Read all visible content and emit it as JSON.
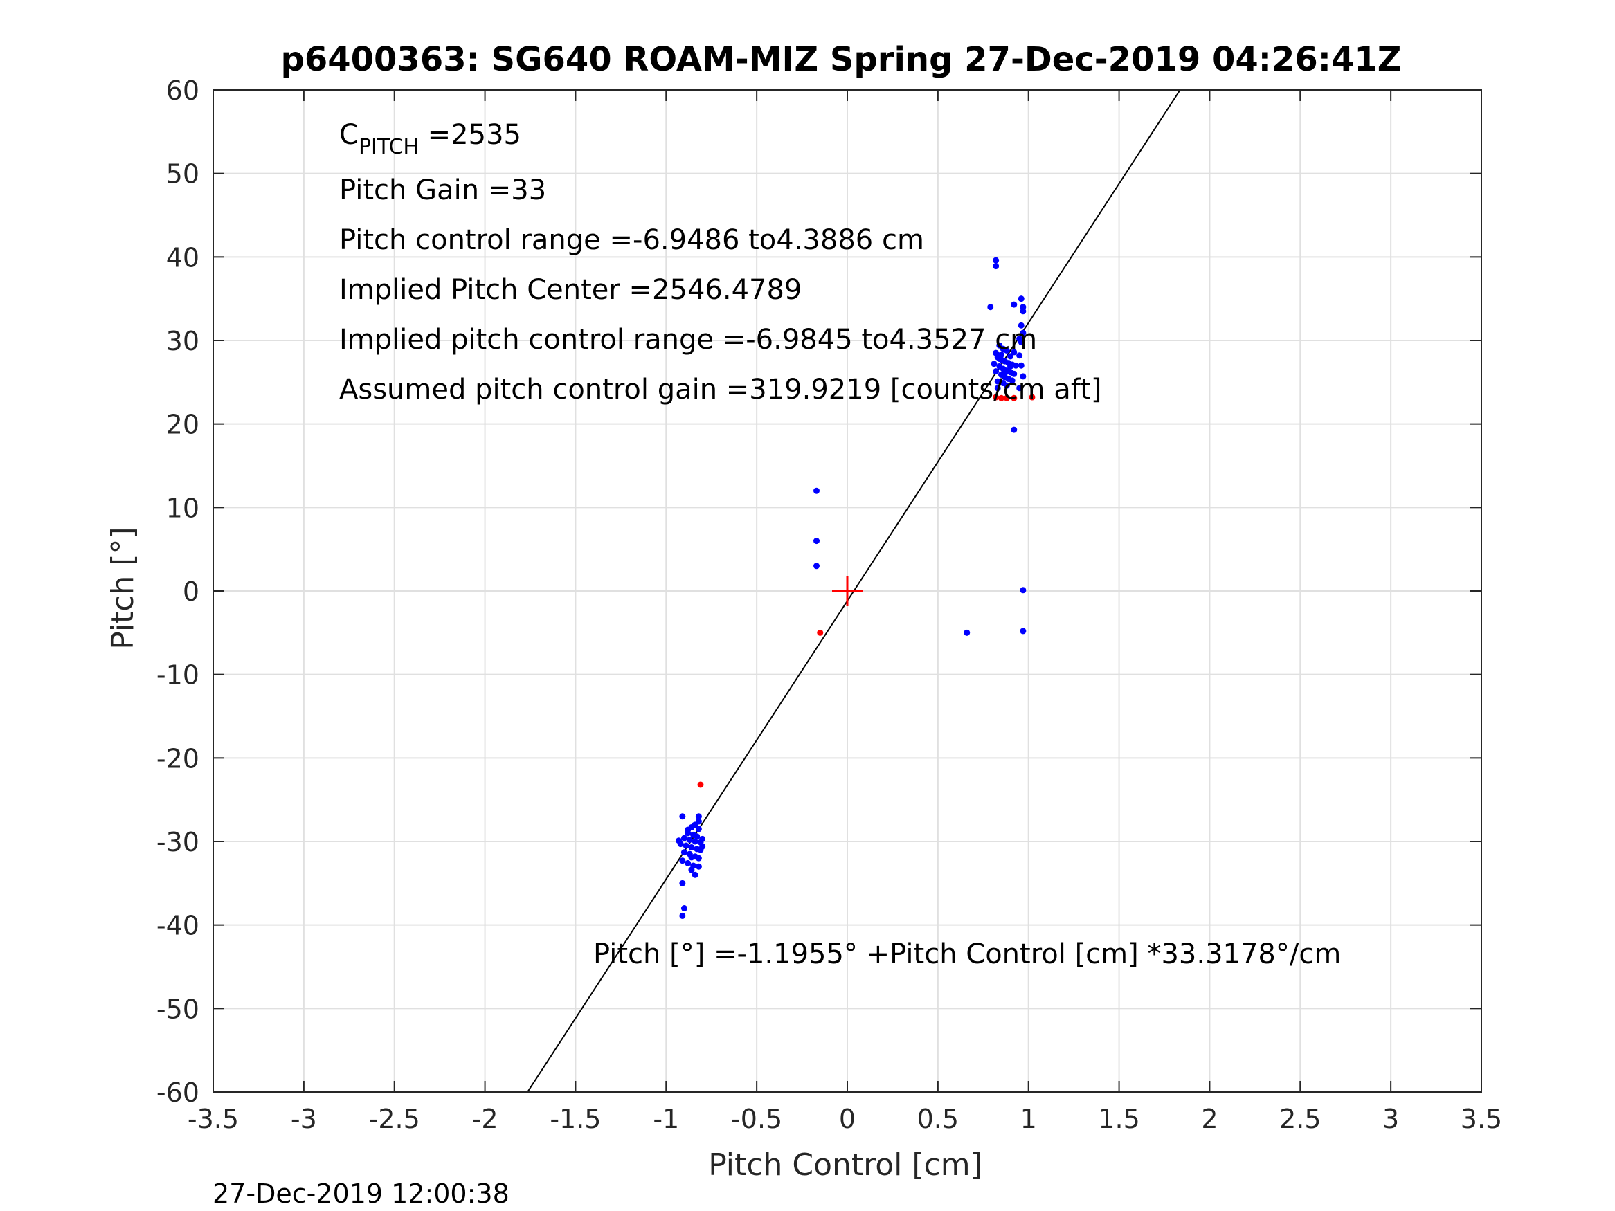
{
  "title": "p6400363: SG640 ROAM-MIZ Spring 27-Dec-2019 04:26:41Z",
  "footer_timestamp": "27-Dec-2019 12:00:38",
  "annotations": [
    {
      "text": "C",
      "sub": "PITCH",
      "tail": " =2535"
    },
    {
      "text": "Pitch Gain =33"
    },
    {
      "text": "Pitch control range =-6.9486 to4.3886 cm"
    },
    {
      "text": "Implied Pitch Center =2546.4789"
    },
    {
      "text": "Implied pitch control range =-6.9845 to4.3527 cm"
    },
    {
      "text": "Assumed pitch control gain =319.9219 [counts/cm aft]"
    }
  ],
  "fit_label": "Pitch [°] =-1.1955° +Pitch Control [cm] *33.3178°/cm",
  "colors": {
    "series_main": "#0000ff",
    "series_flagged": "#ff0000",
    "fit_line": "#000000",
    "center_marker": "#ff0000",
    "grid": "#e0e0e0",
    "axes": "#262626"
  },
  "chart_data": {
    "type": "scatter",
    "title": "p6400363: SG640 ROAM-MIZ Spring 27-Dec-2019 04:26:41Z",
    "xlabel": "Pitch Control [cm]",
    "ylabel": "Pitch [°]",
    "xlim": [
      -3.5,
      3.5
    ],
    "ylim": [
      -60,
      60
    ],
    "xticks": [
      -3.5,
      -3,
      -2.5,
      -2,
      -1.5,
      -1,
      -0.5,
      0,
      0.5,
      1,
      1.5,
      2,
      2.5,
      3,
      3.5
    ],
    "yticks": [
      -60,
      -50,
      -40,
      -30,
      -20,
      -10,
      0,
      10,
      20,
      30,
      40,
      50,
      60
    ],
    "grid": true,
    "fit": {
      "intercept": -1.1955,
      "slope": 33.3178
    },
    "center_marker": {
      "x": 0,
      "y": 0
    },
    "series": [
      {
        "color": "#0000ff",
        "points": [
          [
            0.82,
            39.6
          ],
          [
            0.82,
            38.9
          ],
          [
            0.79,
            34.0
          ],
          [
            0.92,
            34.3
          ],
          [
            0.96,
            35.0
          ],
          [
            0.97,
            33.5
          ],
          [
            0.97,
            34.0
          ],
          [
            0.96,
            31.8
          ],
          [
            0.97,
            30.9
          ],
          [
            0.95,
            30.2
          ],
          [
            0.96,
            29.8
          ],
          [
            0.84,
            29.4
          ],
          [
            0.86,
            29.0
          ],
          [
            0.88,
            28.8
          ],
          [
            0.82,
            28.5
          ],
          [
            0.83,
            28.0
          ],
          [
            0.85,
            27.7
          ],
          [
            0.87,
            27.5
          ],
          [
            0.89,
            27.3
          ],
          [
            0.91,
            27.1
          ],
          [
            0.93,
            27.0
          ],
          [
            0.81,
            27.2
          ],
          [
            0.84,
            26.9
          ],
          [
            0.86,
            26.6
          ],
          [
            0.88,
            26.4
          ],
          [
            0.9,
            26.2
          ],
          [
            0.92,
            26.0
          ],
          [
            0.82,
            26.3
          ],
          [
            0.85,
            25.9
          ],
          [
            0.87,
            25.6
          ],
          [
            0.89,
            25.4
          ],
          [
            0.91,
            25.2
          ],
          [
            0.83,
            25.1
          ],
          [
            0.86,
            24.9
          ],
          [
            0.88,
            24.6
          ],
          [
            0.95,
            28.2
          ],
          [
            0.96,
            27.0
          ],
          [
            0.97,
            25.7
          ],
          [
            0.95,
            24.3
          ],
          [
            0.9,
            28.1
          ],
          [
            0.85,
            28.3
          ],
          [
            0.92,
            28.6
          ],
          [
            0.84,
            27.8
          ],
          [
            0.9,
            26.9
          ],
          [
            0.87,
            26.1
          ],
          [
            0.83,
            24.3
          ],
          [
            0.92,
            19.3
          ],
          [
            0.97,
            0.1
          ],
          [
            0.97,
            -4.8
          ],
          [
            0.66,
            -5.0
          ],
          [
            -0.17,
            12.0
          ],
          [
            -0.17,
            6.0
          ],
          [
            -0.17,
            3.0
          ],
          [
            -0.91,
            -27.0
          ],
          [
            -0.82,
            -27.0
          ],
          [
            -0.82,
            -27.6
          ],
          [
            -0.84,
            -28.0
          ],
          [
            -0.86,
            -28.3
          ],
          [
            -0.82,
            -28.5
          ],
          [
            -0.88,
            -29.0
          ],
          [
            -0.85,
            -29.2
          ],
          [
            -0.83,
            -29.4
          ],
          [
            -0.9,
            -29.6
          ],
          [
            -0.87,
            -29.8
          ],
          [
            -0.84,
            -30.0
          ],
          [
            -0.81,
            -30.1
          ],
          [
            -0.92,
            -30.3
          ],
          [
            -0.89,
            -30.5
          ],
          [
            -0.86,
            -30.7
          ],
          [
            -0.83,
            -30.9
          ],
          [
            -0.81,
            -31.0
          ],
          [
            -0.9,
            -31.3
          ],
          [
            -0.87,
            -31.5
          ],
          [
            -0.84,
            -31.8
          ],
          [
            -0.82,
            -32.0
          ],
          [
            -0.91,
            -32.3
          ],
          [
            -0.88,
            -32.6
          ],
          [
            -0.85,
            -32.9
          ],
          [
            -0.82,
            -33.0
          ],
          [
            -0.86,
            -33.4
          ],
          [
            -0.84,
            -34.0
          ],
          [
            -0.91,
            -35.0
          ],
          [
            -0.9,
            -38.0
          ],
          [
            -0.91,
            -38.9
          ],
          [
            -0.93,
            -29.9
          ],
          [
            -0.8,
            -29.7
          ],
          [
            -0.8,
            -30.6
          ],
          [
            -0.88,
            -28.6
          ],
          [
            -0.86,
            -31.9
          ]
        ]
      },
      {
        "color": "#ff0000",
        "points": [
          [
            0.82,
            23.2
          ],
          [
            0.85,
            23.1
          ],
          [
            0.88,
            23.1
          ],
          [
            0.92,
            23.1
          ],
          [
            1.02,
            23.2
          ],
          [
            -0.15,
            -5.0
          ],
          [
            -0.81,
            -23.2
          ]
        ]
      }
    ]
  }
}
